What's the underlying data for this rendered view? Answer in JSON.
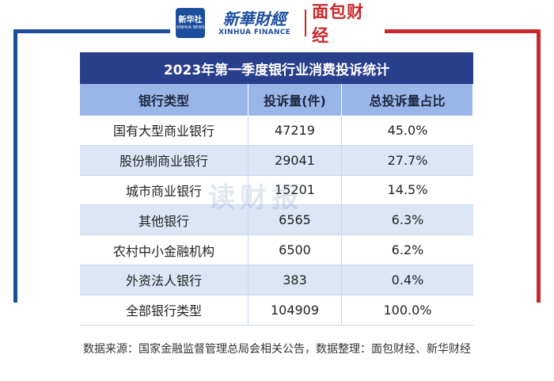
{
  "header": {
    "xinhua_logo_cn": "新华社",
    "xinhua_logo_en": "XINHUA NEWS",
    "xhf_cn": "新華財經",
    "xhf_en": "XINHUA FINANCE",
    "mbcj": "面包财经"
  },
  "table": {
    "title": "2023年第一季度银行业消费投诉统计",
    "columns": [
      "银行类型",
      "投诉量(件)",
      "总投诉量占比"
    ],
    "rows": [
      [
        "国有大型商业银行",
        "47219",
        "45.0%"
      ],
      [
        "股份制商业银行",
        "29041",
        "27.7%"
      ],
      [
        "城市商业银行",
        "15201",
        "14.5%"
      ],
      [
        "其他银行",
        "6565",
        "6.3%"
      ],
      [
        "农村中小金融机构",
        "6500",
        "6.2%"
      ],
      [
        "外资法人银行",
        "383",
        "0.4%"
      ],
      [
        "全部银行类型",
        "104909",
        "100.0%"
      ]
    ]
  },
  "watermark": "读财报",
  "source": "数据来源：国家金融监督管理总局会相关公告，数据整理：面包财经、新华财经",
  "colors": {
    "title_bg": "#2a3f8c",
    "header_bg": "#9ab6e8",
    "stripe_bg": "#dce6f6",
    "brand_blue": "#1d4e9e",
    "brand_red": "#c9282d"
  }
}
